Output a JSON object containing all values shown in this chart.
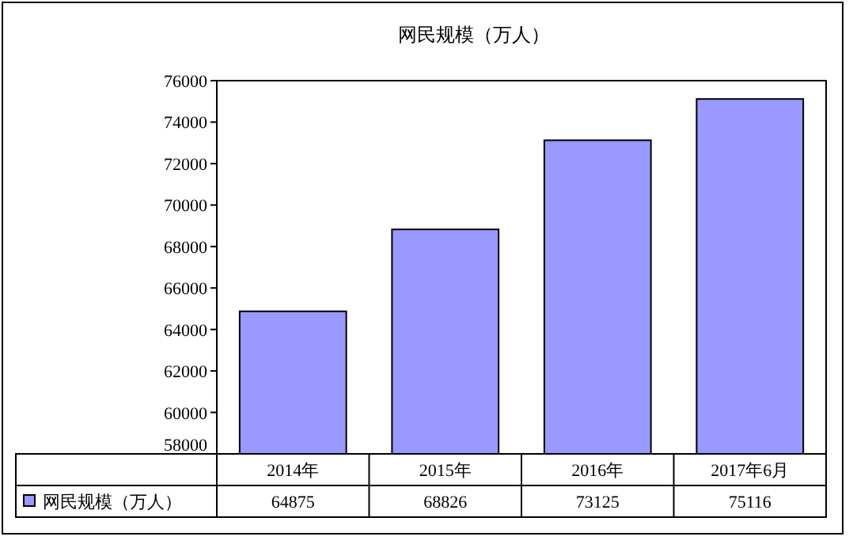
{
  "chart_data": {
    "type": "bar",
    "title": "网民规模（万人）",
    "categories": [
      "2014年",
      "2015年",
      "2016年",
      "2017年6月"
    ],
    "series": [
      {
        "name": "网民规模（万人）",
        "color": "#9999ff",
        "values": [
          64875,
          68826,
          73125,
          75116
        ]
      }
    ],
    "ylim": [
      58000,
      76000
    ],
    "yticks": [
      58000,
      60000,
      62000,
      64000,
      66000,
      68000,
      70000,
      72000,
      74000,
      76000
    ],
    "grid": false,
    "legend": "bottom",
    "data_labels": true
  }
}
